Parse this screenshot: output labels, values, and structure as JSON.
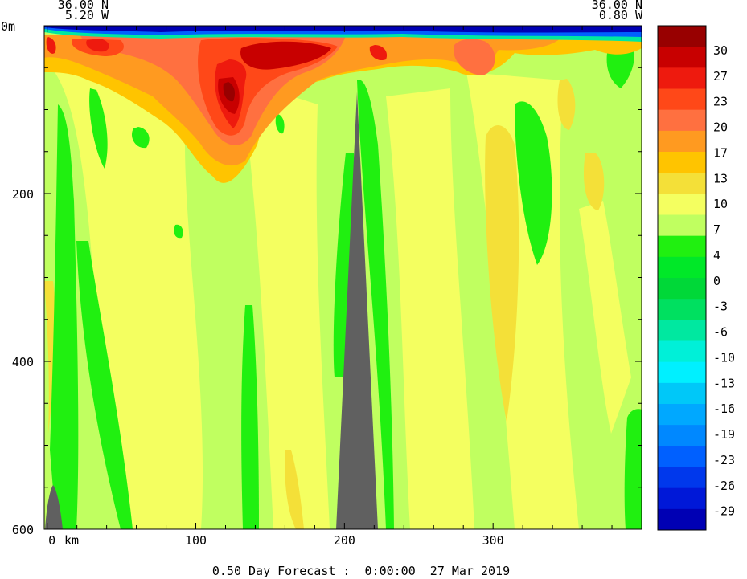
{
  "chart_data": {
    "type": "heatmap",
    "title": "",
    "corner_labels": {
      "left_lat": "36.00 N",
      "left_lon": "5.20 W",
      "right_lat": "36.00 N",
      "right_lon": "0.80 W"
    },
    "x_axis": {
      "unit_label": "km",
      "ticks": [
        {
          "value": 0,
          "label": "0"
        },
        {
          "value": 100,
          "label": "100"
        },
        {
          "value": 200,
          "label": "200"
        },
        {
          "value": 300,
          "label": "300"
        }
      ],
      "range": [
        -2,
        400
      ]
    },
    "y_axis": {
      "unit_label": "m",
      "ticks": [
        {
          "value": 0,
          "label": "0"
        },
        {
          "value": 200,
          "label": "200"
        },
        {
          "value": 400,
          "label": "400"
        },
        {
          "value": 600,
          "label": "600"
        }
      ],
      "range": [
        0,
        600
      ],
      "inverted": true
    },
    "colorbar": {
      "colors": [
        "#0000b4",
        "#0018d8",
        "#0038ec",
        "#0060ff",
        "#0088ff",
        "#00a8ff",
        "#00c8f8",
        "#00f0ff",
        "#00f0d8",
        "#00e8a0",
        "#00e060",
        "#00d838",
        "#00e828",
        "#20f010",
        "#c0ff60",
        "#f4ff60",
        "#f4e038",
        "#ffc400",
        "#ff9a20",
        "#ff7040",
        "#ff4818",
        "#ee1a0e",
        "#c80000",
        "#980000"
      ],
      "labels": [
        "30",
        "27",
        "23",
        "20",
        "17",
        "13",
        "10",
        "7",
        "4",
        "0",
        "-3",
        "-6",
        "-10",
        "-13",
        "-16",
        "-19",
        "-23",
        "-26",
        "-29"
      ]
    },
    "footer": "0.50 Day Forecast :  0:00:00  27 Mar 2019"
  }
}
